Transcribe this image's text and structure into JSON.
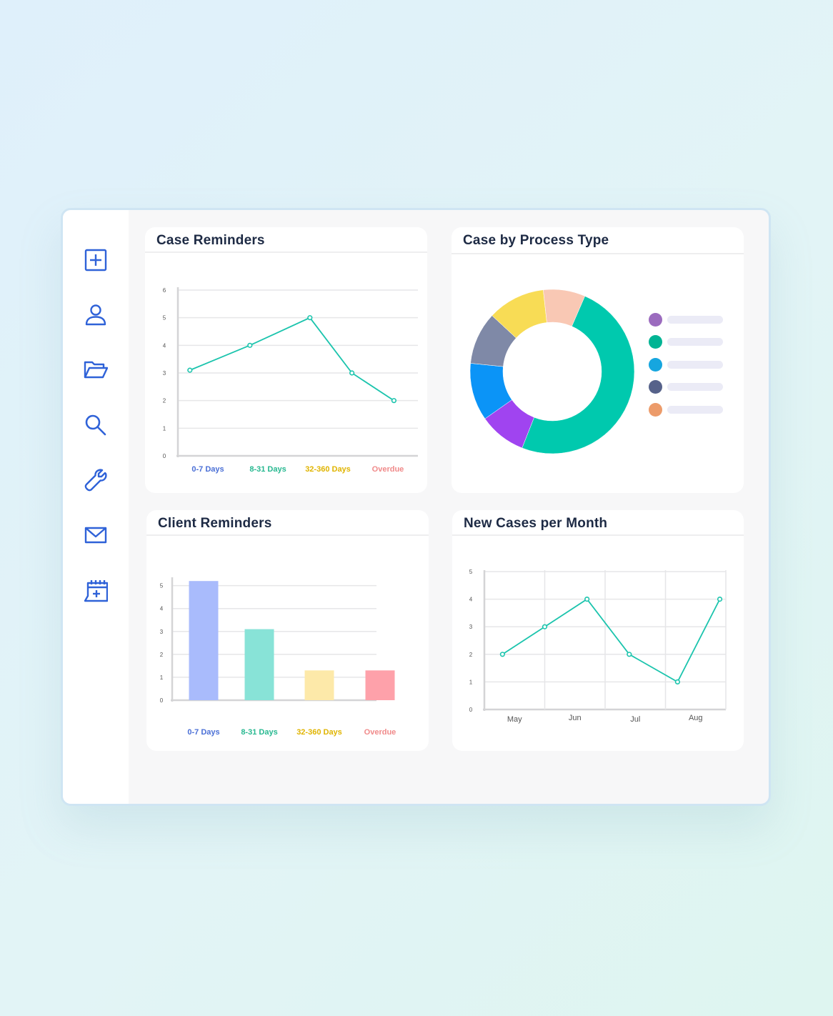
{
  "sidebar": {
    "items": [
      {
        "icon": "plus-square-icon",
        "label": "new-case"
      },
      {
        "icon": "user-icon",
        "label": "clients"
      },
      {
        "icon": "folder-open-icon",
        "label": "cases"
      },
      {
        "icon": "search-icon",
        "label": "search"
      },
      {
        "icon": "wrench-icon",
        "label": "tools"
      },
      {
        "icon": "mail-icon",
        "label": "messages"
      },
      {
        "icon": "calendar-add-icon",
        "label": "calendar"
      }
    ],
    "icon_color": "#2f62d8"
  },
  "cards": {
    "case_reminders": {
      "title": "Case Reminders"
    },
    "process_type": {
      "title": "Case by Process Type"
    },
    "client_reminders": {
      "title": "Client Reminders"
    },
    "new_cases": {
      "title": "New Cases per Month"
    }
  },
  "chart_data": [
    {
      "type": "line",
      "title": "Case Reminders",
      "categories": [
        "0-7 Days",
        "8-31 Days",
        "32-360 Days",
        "Overdue"
      ],
      "category_colors": [
        "#4a6fd6",
        "#27b890",
        "#e0b400",
        "#f08a8a"
      ],
      "series": [
        {
          "x": [
            0.2,
            1.2,
            2.2,
            2.9,
            3.6
          ],
          "values": [
            3.1,
            4,
            5,
            3,
            2
          ],
          "color": "#1bc4ad"
        }
      ],
      "xlim": [
        0,
        4
      ],
      "ylim": [
        0,
        6
      ],
      "yticks": [
        0,
        1,
        2,
        3,
        4,
        5,
        6
      ],
      "grid": true
    },
    {
      "type": "pie",
      "title": "Case by Process Type",
      "donut": true,
      "values": [
        48,
        9,
        11,
        10,
        11,
        8
      ],
      "colors": [
        "#00c9ae",
        "#a044f0",
        "#0b94f7",
        "#7f89a7",
        "#f8dc55",
        "#f9c8b4"
      ],
      "legend_colors": [
        "#9b6bbe",
        "#00b494",
        "#16a6df",
        "#56628a",
        "#ec9b6a"
      ],
      "legend_position": "right"
    },
    {
      "type": "bar",
      "title": "Client Reminders",
      "categories": [
        "0-7 Days",
        "8-31 Days",
        "32-360 Days",
        "Overdue"
      ],
      "values": [
        5.2,
        3.1,
        1.3,
        1.3
      ],
      "colors": [
        "#a9bbfc",
        "#88e3d7",
        "#fde9a9",
        "#fea1aa"
      ],
      "category_colors": [
        "#4a6fd6",
        "#27b890",
        "#e0b400",
        "#f08a8a"
      ],
      "ylim": [
        0,
        5.3
      ],
      "yticks": [
        0,
        1,
        2,
        3,
        4,
        5
      ],
      "grid": true
    },
    {
      "type": "line",
      "title": "New Cases per Month",
      "categories": [
        "May",
        "Jun",
        "Jul",
        "Aug"
      ],
      "series": [
        {
          "x": [
            0.3,
            1.0,
            1.7,
            2.4,
            3.2,
            3.9
          ],
          "values": [
            2,
            3,
            4,
            2,
            1,
            4
          ],
          "color": "#1bc4ad"
        }
      ],
      "xlim": [
        0,
        4
      ],
      "ylim": [
        0,
        5
      ],
      "yticks": [
        0,
        1,
        2,
        3,
        4,
        5
      ],
      "grid": true
    }
  ]
}
